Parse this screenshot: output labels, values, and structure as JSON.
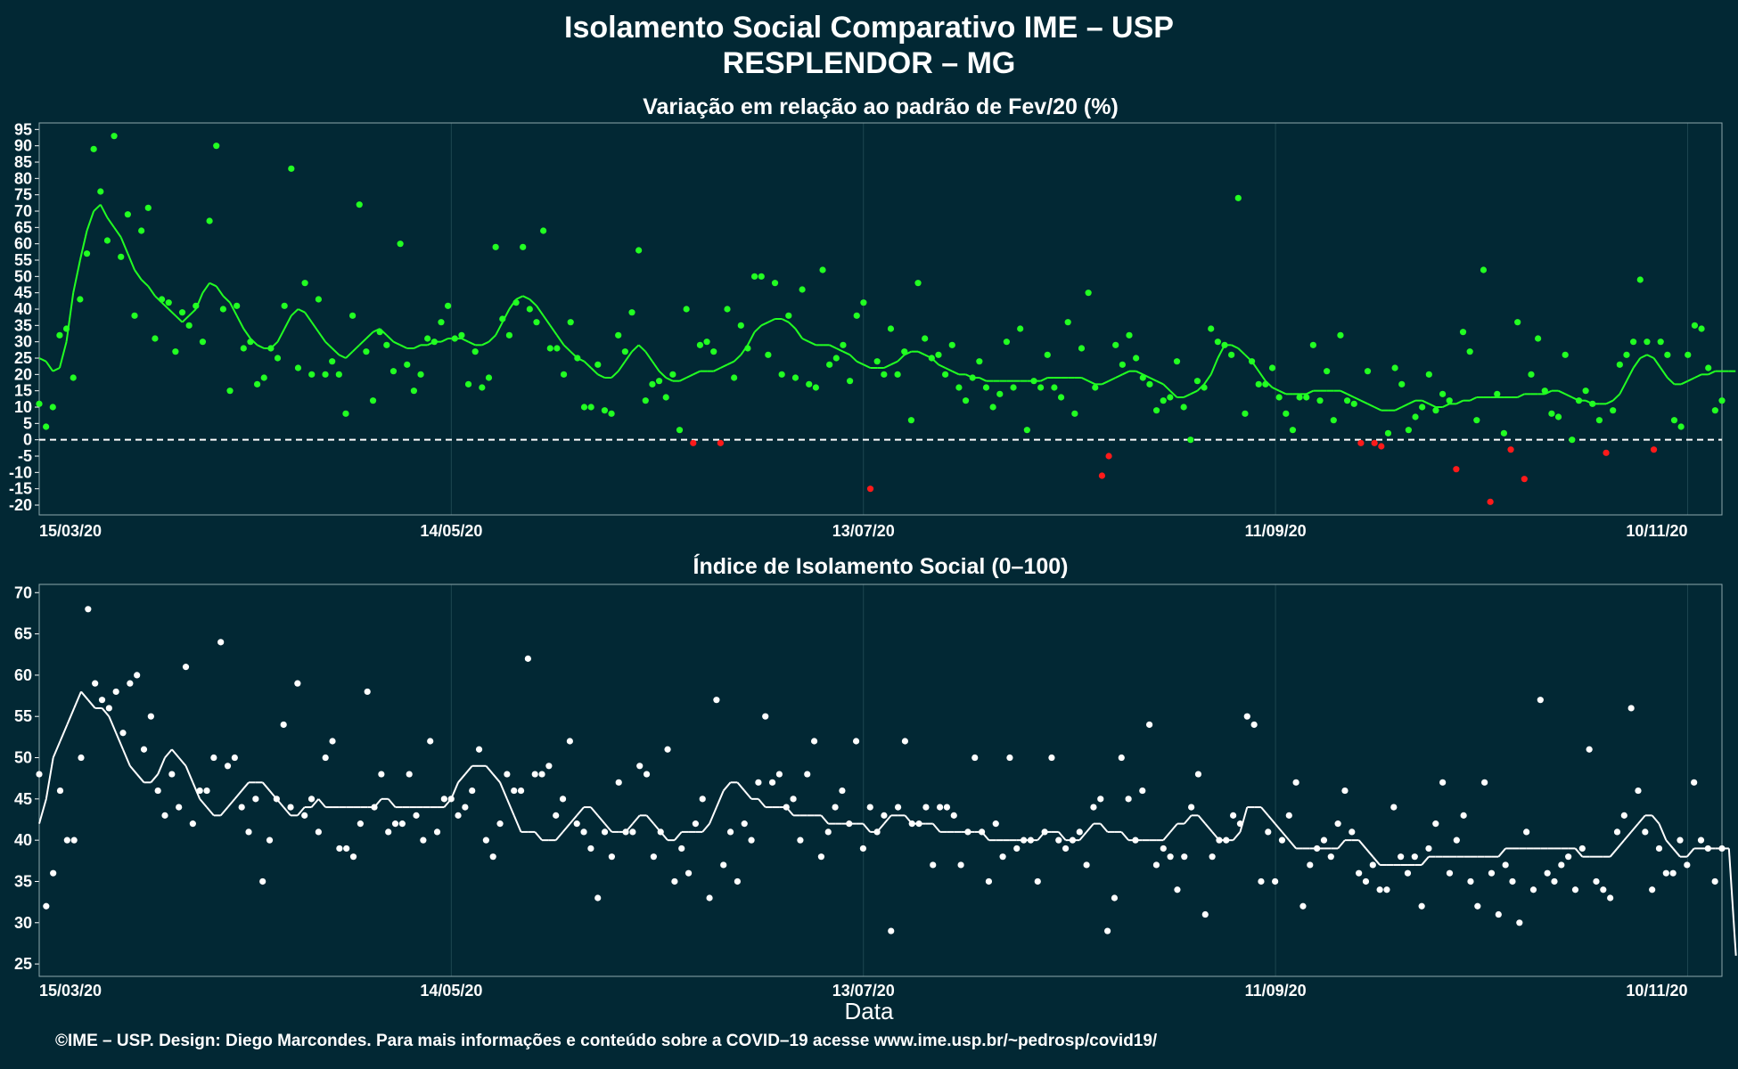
{
  "header": {
    "title": "Isolamento Social Comparativo IME – USP",
    "subtitle": "RESPLENDOR – MG"
  },
  "footer": {
    "credit": "©IME – USP. Design: Diego Marcondes. Para mais informações e conteúdo sobre a COVID–19 acesse www.ime.usp.br/~pedrosp/covid19/"
  },
  "colors": {
    "background": "#022834",
    "positive": "#22ff22",
    "negative": "#ff1a1a",
    "index": "#ffffff",
    "grid": "#1d4650"
  },
  "chart_data": [
    {
      "type": "scatter",
      "title": "Variação em relação ao padrão de Fev/20 (%)",
      "xlabel": "",
      "ylabel": "",
      "x_start": "15/03/20",
      "x_end": "15/11/20",
      "x_ticks": [
        "15/03/20",
        "14/05/20",
        "13/07/20",
        "11/09/20",
        "10/11/20"
      ],
      "y_ticks": [
        95,
        90,
        85,
        80,
        75,
        70,
        65,
        60,
        55,
        50,
        45,
        40,
        35,
        30,
        25,
        20,
        15,
        10,
        5,
        0,
        -5,
        -10,
        -15,
        -20
      ],
      "ylim": [
        -23,
        97
      ],
      "reference_line": 0,
      "grid": true,
      "series": [
        {
          "values": [
            11,
            4,
            10,
            32,
            34,
            19,
            43,
            57,
            89,
            76,
            61,
            93,
            56,
            69,
            38,
            64,
            71,
            31,
            43,
            42,
            27,
            39,
            35,
            41,
            30,
            67,
            90,
            40,
            15,
            41,
            28,
            30,
            17,
            19,
            28,
            25,
            41,
            83,
            22,
            48,
            20,
            43,
            20,
            24,
            20,
            8,
            38,
            72,
            27,
            12,
            33,
            29,
            21,
            60,
            23,
            15,
            20,
            31,
            30,
            36,
            41,
            31,
            32,
            17,
            27,
            16,
            19,
            59,
            37,
            32,
            42,
            59,
            40,
            36,
            64,
            28,
            28,
            20,
            36,
            25,
            10,
            10,
            23,
            9,
            8,
            32,
            27,
            39,
            58,
            12,
            17,
            18,
            13,
            20,
            3,
            40,
            -1,
            29,
            30,
            27,
            -1,
            40,
            19,
            35,
            28,
            50,
            50,
            26,
            48,
            20,
            38,
            19,
            46,
            17,
            16,
            52,
            23,
            25,
            29,
            18,
            38,
            42,
            -15,
            24,
            20,
            34,
            20,
            27,
            6,
            48,
            31,
            25,
            26,
            20,
            29,
            16,
            12,
            19,
            24,
            16,
            10,
            14,
            30,
            16,
            34,
            3,
            18,
            16,
            26,
            16,
            13,
            36,
            8,
            28,
            45,
            16,
            -11,
            -5,
            29,
            23,
            32,
            25,
            19,
            17,
            9,
            12,
            13,
            24,
            10,
            0,
            18,
            16,
            34,
            30,
            29,
            26,
            74,
            8,
            24,
            17,
            17,
            22,
            13,
            8,
            3,
            13,
            13,
            29,
            12,
            21,
            6,
            32,
            12,
            11,
            -1,
            21,
            -1,
            -2,
            2,
            22,
            17,
            3,
            7,
            10,
            20,
            9,
            14,
            12,
            -9,
            33,
            27,
            6,
            52,
            -19,
            14,
            2,
            -3,
            36,
            -12,
            20,
            31,
            15,
            8,
            7,
            26,
            0,
            12,
            15,
            11,
            6,
            -4,
            9,
            23,
            26,
            30,
            49,
            30,
            -3,
            30,
            26,
            6,
            4,
            26,
            35,
            34,
            22,
            9,
            12
          ]
        },
        {
          "name": "",
          "values": [
            25,
            24,
            21,
            22,
            30,
            45,
            55,
            64,
            70,
            72,
            68,
            65,
            62,
            57,
            52,
            49,
            47,
            44,
            42,
            40,
            38,
            36,
            38,
            40,
            45,
            48,
            47,
            44,
            42,
            38,
            34,
            31,
            29,
            28,
            28,
            30,
            34,
            38,
            40,
            39,
            36,
            33,
            30,
            28,
            26,
            25,
            27,
            29,
            31,
            33,
            34,
            32,
            30,
            29,
            28,
            28,
            29,
            29,
            30,
            30,
            31,
            31,
            31,
            30,
            29,
            29,
            30,
            32,
            36,
            40,
            43,
            44,
            43,
            41,
            38,
            35,
            32,
            29,
            27,
            25,
            24,
            22,
            20,
            19,
            19,
            21,
            24,
            27,
            29,
            27,
            24,
            21,
            19,
            18,
            18,
            19,
            20,
            21,
            21,
            21,
            22,
            23,
            24,
            26,
            29,
            33,
            35,
            36,
            37,
            37,
            36,
            34,
            31,
            30,
            29,
            29,
            29,
            28,
            27,
            26,
            24,
            23,
            22,
            22,
            22,
            23,
            24,
            26,
            27,
            27,
            26,
            25,
            23,
            22,
            21,
            20,
            20,
            19,
            19,
            18,
            18,
            18,
            18,
            18,
            18,
            18,
            18,
            18,
            19,
            19,
            19,
            19,
            19,
            19,
            18,
            17,
            17,
            18,
            19,
            20,
            21,
            21,
            20,
            19,
            18,
            17,
            15,
            13,
            13,
            14,
            15,
            17,
            20,
            25,
            29,
            29,
            28,
            26,
            24,
            21,
            18,
            16,
            15,
            14,
            14,
            14,
            14,
            15,
            15,
            15,
            15,
            15,
            14,
            13,
            12,
            11,
            10,
            9,
            9,
            9,
            10,
            11,
            12,
            12,
            11,
            10,
            10,
            11,
            11,
            12,
            12,
            13,
            13,
            13,
            13,
            13,
            13,
            13,
            14,
            14,
            14,
            14,
            15,
            15,
            14,
            13,
            12,
            12,
            11,
            11,
            11,
            12,
            14,
            18,
            22,
            25,
            26,
            25,
            22,
            19,
            17,
            17,
            18,
            19,
            20,
            20,
            21,
            21,
            21,
            21
          ]
        }
      ]
    },
    {
      "type": "scatter",
      "title": "Índice de Isolamento Social (0–100)",
      "xlabel": "Data",
      "ylabel": "",
      "x_start": "15/03/20",
      "x_end": "15/11/20",
      "x_ticks": [
        "15/03/20",
        "14/05/20",
        "13/07/20",
        "11/09/20",
        "10/11/20"
      ],
      "y_ticks": [
        70,
        65,
        60,
        55,
        50,
        45,
        40,
        35,
        30,
        25
      ],
      "ylim": [
        23.5,
        71
      ],
      "grid": true,
      "series": [
        {
          "values": [
            48,
            32,
            36,
            46,
            40,
            40,
            50,
            68,
            59,
            57,
            56,
            58,
            53,
            59,
            60,
            51,
            55,
            46,
            43,
            48,
            44,
            61,
            42,
            46,
            46,
            50,
            64,
            49,
            50,
            44,
            41,
            45,
            35,
            40,
            45,
            54,
            44,
            59,
            43,
            45,
            41,
            50,
            52,
            39,
            39,
            38,
            42,
            58,
            44,
            48,
            41,
            42,
            42,
            48,
            43,
            40,
            52,
            41,
            45,
            45,
            43,
            44,
            46,
            51,
            40,
            38,
            42,
            48,
            46,
            46,
            62,
            48,
            48,
            49,
            43,
            45,
            52,
            42,
            41,
            39,
            33,
            41,
            38,
            47,
            41,
            41,
            49,
            48,
            38,
            41,
            51,
            35,
            39,
            36,
            42,
            45,
            33,
            57,
            37,
            41,
            35,
            42,
            40,
            47,
            55,
            47,
            48,
            44,
            45,
            40,
            48,
            52,
            38,
            41,
            44,
            46,
            42,
            52,
            39,
            44,
            41,
            43,
            29,
            44,
            52,
            42,
            42,
            44,
            37,
            44,
            44,
            43,
            37,
            41,
            50,
            41,
            35,
            42,
            38,
            50,
            39,
            40,
            40,
            35,
            41,
            50,
            40,
            39,
            40,
            41,
            37,
            44,
            45,
            29,
            33,
            50,
            45,
            40,
            46,
            54,
            37,
            39,
            38,
            34,
            38,
            44,
            48,
            31,
            38,
            40,
            40,
            43,
            42,
            55,
            54,
            35,
            41,
            35,
            40,
            43,
            47,
            32,
            37,
            39,
            40,
            38,
            42,
            46,
            41,
            36,
            35,
            37,
            34,
            34,
            44,
            38,
            36,
            38,
            32,
            39,
            42,
            47,
            36,
            40,
            43,
            35,
            32,
            47,
            36,
            31,
            37,
            35,
            30,
            41,
            34,
            57,
            36,
            35,
            37,
            38,
            34,
            39,
            51,
            35,
            34,
            33,
            41,
            43,
            56,
            46,
            41,
            34,
            39,
            36,
            36,
            40,
            37,
            47,
            40,
            39,
            35,
            39
          ]
        },
        {
          "name": "",
          "values": [
            42,
            45,
            50,
            52,
            54,
            56,
            58,
            57,
            56,
            56,
            55,
            53,
            51,
            49,
            48,
            47,
            47,
            48,
            50,
            51,
            50,
            49,
            47,
            45,
            44,
            43,
            43,
            44,
            45,
            46,
            47,
            47,
            47,
            46,
            45,
            44,
            43,
            43,
            44,
            44,
            45,
            44,
            44,
            44,
            44,
            44,
            44,
            44,
            44,
            45,
            45,
            44,
            44,
            44,
            44,
            44,
            44,
            44,
            44,
            45,
            47,
            48,
            49,
            49,
            49,
            48,
            47,
            45,
            43,
            41,
            41,
            41,
            40,
            40,
            40,
            41,
            42,
            43,
            44,
            44,
            43,
            42,
            41,
            41,
            41,
            42,
            43,
            43,
            42,
            41,
            40,
            40,
            41,
            41,
            41,
            41,
            42,
            44,
            46,
            47,
            47,
            46,
            45,
            45,
            44,
            44,
            44,
            44,
            43,
            43,
            43,
            43,
            43,
            42,
            42,
            42,
            42,
            42,
            42,
            41,
            41,
            42,
            43,
            43,
            43,
            42,
            42,
            42,
            42,
            41,
            41,
            41,
            41,
            41,
            41,
            41,
            40,
            40,
            40,
            40,
            40,
            40,
            40,
            40,
            41,
            41,
            41,
            40,
            40,
            40,
            41,
            42,
            42,
            41,
            41,
            41,
            40,
            40,
            40,
            40,
            40,
            40,
            41,
            42,
            42,
            43,
            43,
            42,
            41,
            40,
            40,
            40,
            41,
            44,
            44,
            44,
            43,
            42,
            41,
            40,
            39,
            39,
            39,
            39,
            39,
            39,
            39,
            40,
            40,
            40,
            39,
            38,
            37,
            37,
            37,
            37,
            37,
            37,
            37,
            38,
            38,
            38,
            38,
            38,
            38,
            38,
            38,
            38,
            38,
            38,
            39,
            39,
            39,
            39,
            39,
            39,
            39,
            39,
            39,
            39,
            39,
            38,
            38,
            38,
            38,
            38,
            39,
            40,
            41,
            42,
            43,
            43,
            42,
            40,
            39,
            38,
            38,
            39,
            39,
            39,
            39,
            39,
            39,
            26
          ]
        }
      ]
    }
  ]
}
